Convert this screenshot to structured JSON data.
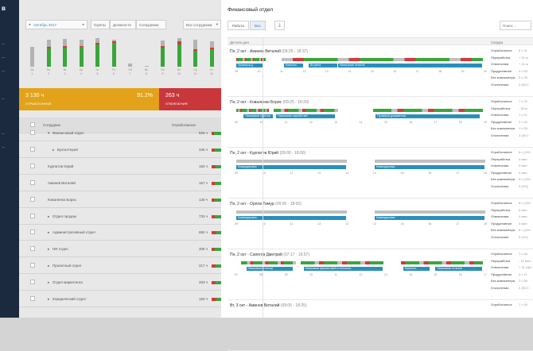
{
  "sidebar": {
    "logo": "в",
    "items": [
      "",
      "",
      "",
      "",
      "",
      "",
      "",
      ""
    ]
  },
  "toolbar": {
    "prev": "◂",
    "month": "Октябрь 2017",
    "next": "▸",
    "tabs": [
      "Группы",
      "Должности",
      "Сотрудники"
    ],
    "filter": "Все сотрудники"
  },
  "bg_chart": {
    "days": [
      {
        "name": "Вс",
        "num": "1",
        "total": 0.62,
        "green": 0.0,
        "red": 0.0
      },
      {
        "name": "Пн",
        "num": "2",
        "total": 0.85,
        "green": 0.58,
        "red": 0.05
      },
      {
        "name": "Вт",
        "num": "3",
        "total": 0.88,
        "green": 0.6,
        "red": 0.06
      },
      {
        "name": "Ср",
        "num": "4",
        "total": 0.85,
        "green": 0.62,
        "red": 0.04
      },
      {
        "name": "Чт",
        "num": "5",
        "total": 0.9,
        "green": 0.7,
        "red": 0.05
      },
      {
        "name": "Пт",
        "num": "6",
        "total": 0.86,
        "green": 0.75,
        "red": 0.04
      },
      {
        "name": "Сб",
        "num": "7",
        "total": 0.1,
        "green": 0.0,
        "red": 0.0
      },
      {
        "name": "Вс",
        "num": "8",
        "total": 0.02,
        "green": 0.0,
        "red": 0.0
      },
      {
        "name": "Пн",
        "num": "9",
        "total": 0.82,
        "green": 0.6,
        "red": 0.06
      },
      {
        "name": "Вт",
        "num": "10",
        "total": 0.9,
        "green": 0.7,
        "red": 0.1
      },
      {
        "name": "Ср",
        "num": "11",
        "total": 0.86,
        "green": 0.5,
        "red": 0.06
      },
      {
        "name": "Чт",
        "num": "12",
        "total": 0.8,
        "green": 0.55,
        "red": 0.05
      }
    ]
  },
  "summary": {
    "worked_value": "3 130 ч",
    "worked_label": "ОТРАБОТАННОЕ",
    "worked_pct": "91.2%",
    "absent_value": "263 ч",
    "absent_label": "ОТВЛЕЧЕНИЯ"
  },
  "table": {
    "headers": {
      "employee": "Сотрудник",
      "worked": "Отработанное"
    },
    "rows": [
      {
        "name": "Финансовый отдел",
        "hours": "826 ч",
        "indent": 1,
        "arrow": "▾",
        "green": 0.75
      },
      {
        "name": "Бухгалтерия",
        "hours": "345 ч",
        "indent": 2,
        "arrow": "▸",
        "green": 0.7
      },
      {
        "name": "Курпатов Юрий",
        "hours": "182 ч",
        "indent": 0,
        "arrow": "",
        "green": 0.6
      },
      {
        "name": "Аминев Виталий",
        "hours": "167 ч",
        "indent": 0,
        "arrow": "",
        "green": 0.65
      },
      {
        "name": "Коваленко Борис",
        "hours": "130 ч",
        "indent": 0,
        "arrow": "",
        "green": 0.7
      },
      {
        "name": "Отдел продаж",
        "hours": "733 ч",
        "indent": 1,
        "arrow": "▸",
        "green": 0.68
      },
      {
        "name": "Административный отдел",
        "hours": "682 ч",
        "indent": 1,
        "arrow": "▸",
        "green": 0.55
      },
      {
        "name": "HR отдел",
        "hours": "306 ч",
        "indent": 1,
        "arrow": "▸",
        "green": 0.72
      },
      {
        "name": "Проектный отдел",
        "hours": "217 ч",
        "indent": 1,
        "arrow": "▸",
        "green": 0.6
      },
      {
        "name": "Отдел маркетинга",
        "hours": "203 ч",
        "indent": 1,
        "arrow": "▸",
        "green": 0.62
      },
      {
        "name": "Юридический отдел",
        "hours": "160 ч",
        "indent": 1,
        "arrow": "▸",
        "green": 0.5
      }
    ]
  },
  "panel": {
    "title": "Финансовый отдел",
    "segments": [
      "Работа",
      "Все"
    ],
    "download_icon": "download-icon",
    "search_placeholder": "Поиск ...",
    "col_details": "Детали дня",
    "col_summary": "Сводка",
    "days": [
      {
        "who": "Пн, 2 окт - Аминев Виталий",
        "time": "(09:25 - 18:37)",
        "tl_start": 9,
        "tl_end": 20,
        "segments": [
          {
            "s": 9.0,
            "e": 10.3,
            "c": "mix"
          },
          {
            "s": 11.0,
            "e": 19.9,
            "c": "mix"
          }
        ],
        "labels": [
          {
            "s": 9.0,
            "e": 10.2,
            "t": "Проверка д."
          },
          {
            "s": 11.1,
            "e": 12.0,
            "t": "Написан."
          },
          {
            "s": 12.2,
            "e": 13.5,
            "t": "Встреча"
          },
          {
            "s": 13.5,
            "e": 19.9,
            "t": "Написание отчетов"
          }
        ],
        "stats": [
          {
            "k": "Отработанное",
            "v": "8 ч 31"
          },
          {
            "k": "Переработка",
            "v": "+ 31 м"
          },
          {
            "k": "Отвлечения",
            "v": "+ 31 м"
          },
          {
            "k": "Продуктивное",
            "v": "4 ч 50"
          },
          {
            "k": "Без компьютера",
            "v": "3 ч 25"
          },
          {
            "k": "Отклонения",
            "v": "2 (50.0"
          }
        ]
      },
      {
        "who": "Пн, 2 окт - Коваленко Борис",
        "time": "(09:25 - 18:20)",
        "tl_start": 9,
        "tl_end": 19,
        "segments": [
          {
            "s": 9.0,
            "e": 10.3,
            "c": "mix"
          },
          {
            "s": 10.5,
            "e": 13.1,
            "c": "mix"
          },
          {
            "s": 14.5,
            "e": 18.9,
            "c": "mix"
          }
        ],
        "labels": [
          {
            "s": 9.3,
            "e": 10.5,
            "t": "Написание отчетов"
          },
          {
            "s": 10.6,
            "e": 13.0,
            "t": "Написание харобэтчей"
          },
          {
            "s": 14.6,
            "e": 18.8,
            "t": "Проверка документов"
          }
        ],
        "stats": [
          {
            "k": "Отработанное",
            "v": "7 ч 20"
          },
          {
            "k": "Переработка",
            "v": "- 39 м"
          },
          {
            "k": "Отвлечения",
            "v": "1 ч 01"
          },
          {
            "k": "Продуктивное",
            "v": "3 ч 43"
          },
          {
            "k": "Без компьютера",
            "v": "1 ч 55"
          },
          {
            "k": "Отклонения",
            "v": "2 (50.0"
          }
        ]
      },
      {
        "who": "Пн, 2 окт - Курпатов Юрий",
        "time": "(09:00 - 18:00)",
        "tl_start": 9,
        "tl_end": 18,
        "segments": [
          {
            "s": 9.0,
            "e": 13.0,
            "c": "gray"
          },
          {
            "s": 14.0,
            "e": 18.0,
            "c": "gray"
          }
        ],
        "labels": [
          {
            "s": 9.0,
            "e": 13.0,
            "t": "Командировка"
          },
          {
            "s": 14.0,
            "e": 18.0,
            "t": "Командировка"
          }
        ],
        "stats": [
          {
            "k": "Отработанное",
            "v": "8 ч (100"
          },
          {
            "k": "Переработка",
            "v": "0 мин"
          },
          {
            "k": "Отвлечения",
            "v": "0 мин"
          },
          {
            "k": "Продуктивное",
            "v": "0 мин"
          },
          {
            "k": "Без компьютера",
            "v": "8 ч (100"
          },
          {
            "k": "Отклонения",
            "v": "0 (0%)"
          }
        ]
      },
      {
        "who": "Пн, 2 окт - Орлов Тимур",
        "time": "(09:00 - 18:00)",
        "tl_start": 9,
        "tl_end": 18,
        "segments": [
          {
            "s": 9.0,
            "e": 13.0,
            "c": "gray"
          },
          {
            "s": 14.0,
            "e": 18.0,
            "c": "gray"
          }
        ],
        "labels": [
          {
            "s": 9.0,
            "e": 13.0,
            "t": "Командировка"
          },
          {
            "s": 14.0,
            "e": 18.0,
            "t": "Командировка"
          }
        ],
        "stats": [
          {
            "k": "Отработанное",
            "v": "8 ч (100"
          },
          {
            "k": "Переработка",
            "v": "0 мин"
          },
          {
            "k": "Отвлечения",
            "v": "0 мин"
          },
          {
            "k": "Продуктивное",
            "v": "0 мин"
          },
          {
            "k": "Без компьютера",
            "v": "8 ч (100"
          },
          {
            "k": "Отклонения",
            "v": "0 (0%)"
          }
        ]
      },
      {
        "who": "Пн, 2 окт - Сапегов Дмитрий",
        "time": "(07:17 - 16:57)",
        "tl_start": 7,
        "tl_end": 17,
        "segments": [
          {
            "s": 7.2,
            "e": 9.4,
            "c": "mix"
          },
          {
            "s": 9.6,
            "e": 12.9,
            "c": "mix"
          },
          {
            "s": 13.6,
            "e": 16.9,
            "c": "mix"
          }
        ],
        "labels": [
          {
            "s": 7.4,
            "e": 9.3,
            "t": "Написание отчетов"
          },
          {
            "s": 9.7,
            "e": 12.9,
            "t": "Написание финансовой отчетности"
          },
          {
            "s": 13.7,
            "e": 14.8,
            "t": "Написан."
          },
          {
            "s": 15.0,
            "e": 16.9,
            "t": "Написание отчетов"
          }
        ],
        "stats": [
          {
            "k": "Отработанное",
            "v": "7 ч 46"
          },
          {
            "k": "Переработка",
            "v": "- 11 мин"
          },
          {
            "k": "Отвлечения",
            "v": "+ 41 мин"
          },
          {
            "k": "Продуктивное",
            "v": "4 ч 11"
          },
          {
            "k": "Без компьютера",
            "v": "2 ч 50"
          },
          {
            "k": "Отклонения",
            "v": "2 (50.0"
          }
        ]
      },
      {
        "who": "Вт, 3 окт - Аминев Виталий",
        "time": "(09:05 - 18:25)",
        "tl_start": 9,
        "tl_end": 19,
        "segments": [],
        "labels": [],
        "stats": [
          {
            "k": "Отработанное",
            "v": "7 ч 59"
          }
        ]
      }
    ]
  },
  "colors": {
    "green": "#3aa63a",
    "red": "#d33a3a",
    "gray": "#c0c0c0",
    "blue": "#2a8fbd",
    "orange": "#e2a21a"
  }
}
